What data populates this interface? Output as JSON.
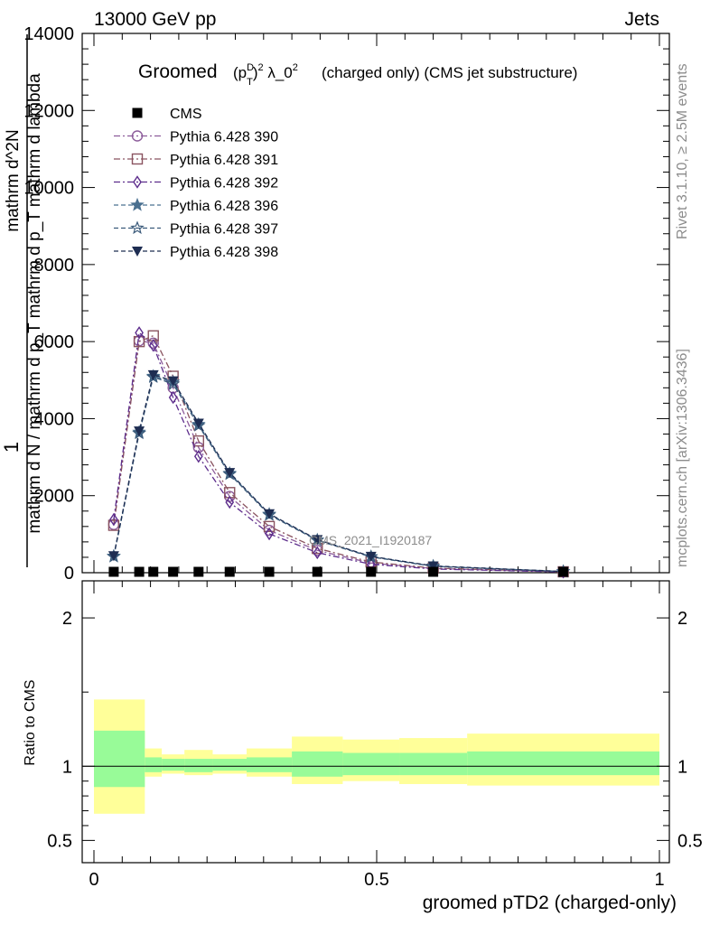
{
  "header": {
    "left": "13000 GeV pp",
    "right": "Jets"
  },
  "side_labels": {
    "rivet": "Rivet 3.1.10, ≥ 2.5M events",
    "mcplots": "mcplots.cern.ch [arXiv:1306.3436]"
  },
  "watermark": "CMS_2021_I1920187",
  "colors": {
    "cms": "#000000",
    "p390": "#8d5d9b",
    "p391": "#8a5460",
    "p392": "#5d2d8c",
    "p396": "#4a7090",
    "p397": "#3a5a7a",
    "p398": "#1e2d52",
    "band_inner": "#98fb98",
    "band_outer": "#ffff99"
  },
  "chart_data": {
    "type": "line",
    "title_main": "Groomed",
    "title_math": "(p_T^D)^2 λ_0^2",
    "title_rest": "(charged only) (CMS jet substructure)",
    "xlabel": "groomed pTD2 (charged-only)",
    "ylabel_top": "1",
    "ylabel_num": "mathrm d^2N",
    "ylabel_den": "mathrm d N / mathrm d p_T mathrm d p_T mathrm d lambda",
    "ratio_ylabel": "Ratio to CMS",
    "xlim": [
      0,
      1
    ],
    "ylim": [
      0,
      14000
    ],
    "ratio_ylim": [
      0.35,
      2.25
    ],
    "x_ticks": [
      "0",
      "0.5",
      "1"
    ],
    "y_ticks": [
      "0",
      "2000",
      "4000",
      "6000",
      "8000",
      "10000",
      "12000",
      "14000"
    ],
    "ratio_ticks": [
      "0.5",
      "1",
      "2"
    ],
    "x": [
      0.035,
      0.08,
      0.105,
      0.14,
      0.185,
      0.24,
      0.31,
      0.395,
      0.49,
      0.6,
      0.83
    ],
    "series": [
      {
        "name": "CMS",
        "marker": "square",
        "values": [
          2,
          2,
          2,
          2,
          2,
          2,
          2,
          2,
          2,
          2,
          2
        ]
      },
      {
        "name": "Pythia 6.428 390",
        "marker": "circle",
        "values": [
          1250,
          6020,
          5960,
          4800,
          3250,
          1980,
          1100,
          580,
          250,
          110,
          22
        ]
      },
      {
        "name": "Pythia 6.428 391",
        "marker": "square-open",
        "values": [
          1230,
          6000,
          6150,
          5100,
          3420,
          2080,
          1200,
          630,
          280,
          120,
          24
        ]
      },
      {
        "name": "Pythia 6.428 392",
        "marker": "diamond",
        "values": [
          1380,
          6230,
          5900,
          4550,
          3020,
          1830,
          1010,
          520,
          220,
          95,
          18
        ]
      },
      {
        "name": "Pythia 6.428 396",
        "marker": "star-filled",
        "values": [
          430,
          3650,
          5100,
          4950,
          3850,
          2580,
          1520,
          850,
          420,
          170,
          30
        ]
      },
      {
        "name": "Pythia 6.428 397",
        "marker": "star-open",
        "values": [
          420,
          3620,
          5080,
          4900,
          3820,
          2560,
          1500,
          840,
          410,
          165,
          30
        ]
      },
      {
        "name": "Pythia 6.428 398",
        "marker": "triangle-down",
        "values": [
          440,
          3680,
          5140,
          4980,
          3880,
          2600,
          1530,
          860,
          425,
          175,
          32
        ]
      }
    ],
    "ratio_bands": [
      {
        "x0": 0.0,
        "x1": 0.09,
        "inner": [
          0.86,
          1.24
        ],
        "outer": [
          0.68,
          1.45
        ]
      },
      {
        "x0": 0.09,
        "x1": 0.12,
        "inner": [
          0.96,
          1.06
        ],
        "outer": [
          0.93,
          1.12
        ]
      },
      {
        "x0": 0.12,
        "x1": 0.16,
        "inner": [
          0.97,
          1.05
        ],
        "outer": [
          0.95,
          1.08
        ]
      },
      {
        "x0": 0.16,
        "x1": 0.21,
        "inner": [
          0.96,
          1.05
        ],
        "outer": [
          0.94,
          1.11
        ]
      },
      {
        "x0": 0.21,
        "x1": 0.27,
        "inner": [
          0.97,
          1.05
        ],
        "outer": [
          0.95,
          1.08
        ]
      },
      {
        "x0": 0.27,
        "x1": 0.35,
        "inner": [
          0.96,
          1.06
        ],
        "outer": [
          0.93,
          1.12
        ]
      },
      {
        "x0": 0.35,
        "x1": 0.44,
        "inner": [
          0.93,
          1.1
        ],
        "outer": [
          0.88,
          1.2
        ]
      },
      {
        "x0": 0.44,
        "x1": 0.54,
        "inner": [
          0.94,
          1.09
        ],
        "outer": [
          0.9,
          1.18
        ]
      },
      {
        "x0": 0.54,
        "x1": 0.66,
        "inner": [
          0.94,
          1.09
        ],
        "outer": [
          0.88,
          1.19
        ]
      },
      {
        "x0": 0.66,
        "x1": 1.0,
        "inner": [
          0.94,
          1.1
        ],
        "outer": [
          0.87,
          1.22
        ]
      }
    ]
  }
}
